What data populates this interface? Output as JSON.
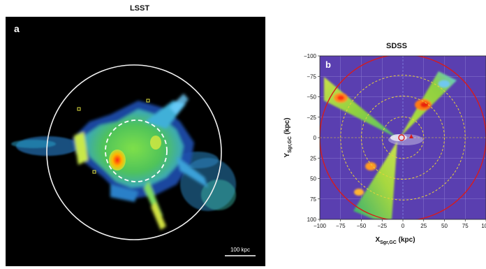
{
  "panel_a": {
    "title": "LSST",
    "letter": "a",
    "scale_bar": "100 kpc"
  },
  "panel_b": {
    "title": "SDSS",
    "letter": "b",
    "x_ticks": [
      "−100",
      "−75",
      "−50",
      "−25",
      "0",
      "25",
      "50",
      "75",
      "100"
    ],
    "y_ticks": [
      "−100",
      "−75",
      "−50",
      "−25",
      "0",
      "25",
      "50",
      "75",
      "100"
    ],
    "xlabel_main": "X",
    "xlabel_sub": "Sgr,GC",
    "xlabel_unit": " (kpc)",
    "ylabel_main": "Y",
    "ylabel_sub": "Sgr,GC",
    "ylabel_unit": " (kpc)"
  },
  "colors": {
    "lsst_bg": "#000000",
    "sdss_bg": "#5a3fb0",
    "circle_white": "#f2f2f2",
    "circle_red": "#d81b1b",
    "dashed_yellow": "#e8d23a"
  }
}
